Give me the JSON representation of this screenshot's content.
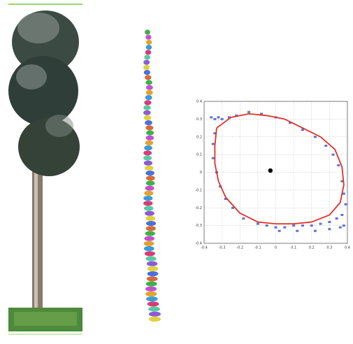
{
  "chart_data": {
    "type": "scatter",
    "xlim": [
      -0.4,
      0.4
    ],
    "ylim": [
      -0.4,
      0.4
    ],
    "xticks": [
      -0.4,
      -0.3,
      -0.2,
      -0.1,
      0,
      0.1,
      0.2,
      0.3,
      0.4
    ],
    "yticks": [
      -0.4,
      -0.3,
      -0.2,
      -0.1,
      0,
      0.1,
      0.2,
      0.3,
      0.4
    ],
    "grid": true,
    "series": [
      {
        "type": "scatter",
        "color": "#3b4fc4",
        "x": [
          -0.36,
          -0.34,
          -0.32,
          -0.3,
          -0.26,
          -0.22,
          -0.15,
          -0.08,
          0.0,
          0.08,
          0.15,
          0.22,
          0.28,
          0.32,
          0.35,
          0.37,
          0.38,
          0.39,
          0.37,
          0.34,
          0.3,
          0.25,
          0.2,
          0.15,
          0.1,
          0.05,
          0.0,
          -0.05,
          -0.1,
          -0.18,
          -0.24,
          -0.28,
          -0.31,
          -0.33,
          -0.35,
          -0.35,
          -0.34,
          0.02,
          0.12,
          0.22,
          0.3,
          0.36,
          0.38
        ],
        "y": [
          0.31,
          0.3,
          0.31,
          0.3,
          0.31,
          0.32,
          0.34,
          0.33,
          0.31,
          0.28,
          0.24,
          0.2,
          0.15,
          0.1,
          0.04,
          -0.05,
          -0.12,
          -0.18,
          -0.24,
          -0.26,
          -0.28,
          -0.29,
          -0.3,
          -0.3,
          -0.3,
          -0.31,
          -0.31,
          -0.3,
          -0.29,
          -0.26,
          -0.2,
          -0.15,
          -0.08,
          0.0,
          0.08,
          0.16,
          0.22,
          -0.33,
          -0.33,
          -0.33,
          -0.32,
          -0.31,
          -0.3
        ]
      },
      {
        "type": "line",
        "color": "#e0302a",
        "x": [
          -0.33,
          -0.25,
          -0.15,
          -0.05,
          0.05,
          0.15,
          0.25,
          0.33,
          0.37,
          0.38,
          0.36,
          0.3,
          0.2,
          0.1,
          0.0,
          -0.1,
          -0.2,
          -0.28,
          -0.32,
          -0.34,
          -0.34,
          -0.33
        ],
        "y": [
          0.25,
          0.31,
          0.33,
          0.32,
          0.3,
          0.25,
          0.2,
          0.13,
          0.03,
          -0.07,
          -0.17,
          -0.24,
          -0.28,
          -0.29,
          -0.29,
          -0.28,
          -0.23,
          -0.14,
          -0.05,
          0.05,
          0.15,
          0.25
        ]
      },
      {
        "type": "scatter",
        "color": "#000000",
        "x": [
          -0.03
        ],
        "y": [
          0.01
        ]
      }
    ]
  }
}
